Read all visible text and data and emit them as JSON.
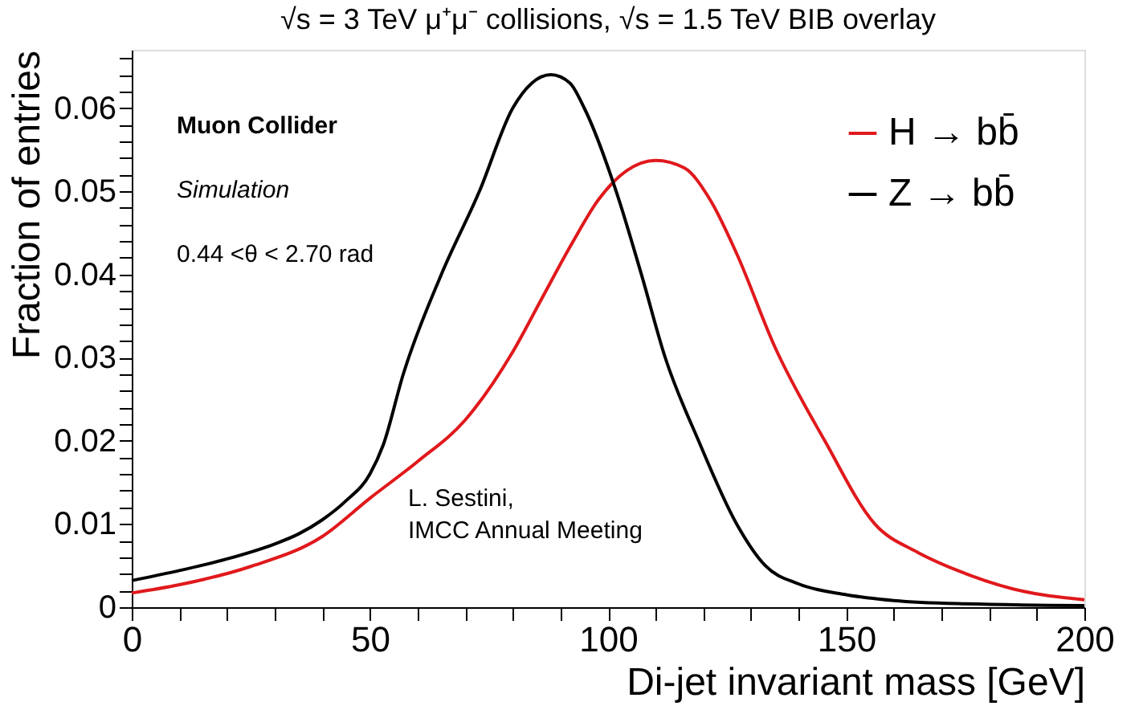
{
  "chart_data": {
    "type": "line",
    "title": "√s = 3 TeV μ⁺μ⁻ collisions, √s = 1.5 TeV BIB overlay",
    "xlabel": "Di-jet invariant mass [GeV]",
    "ylabel": "Fraction of entries",
    "xlim": [
      0,
      200
    ],
    "ylim": [
      0,
      0.067
    ],
    "xticks": [
      0,
      {
        "value": 10,
        "label": null
      },
      {
        "value": 20,
        "label": null
      },
      {
        "value": 30,
        "label": null
      },
      {
        "value": 40,
        "label": null
      },
      50,
      {
        "value": 60,
        "label": null
      },
      {
        "value": 70,
        "label": null
      },
      {
        "value": 80,
        "label": null
      },
      {
        "value": 90,
        "label": null
      },
      100,
      {
        "value": 110,
        "label": null
      },
      {
        "value": 120,
        "label": null
      },
      {
        "value": 130,
        "label": null
      },
      {
        "value": 140,
        "label": null
      },
      150,
      {
        "value": 160,
        "label": null
      },
      {
        "value": 170,
        "label": null
      },
      {
        "value": 180,
        "label": null
      },
      {
        "value": 190,
        "label": null
      },
      200
    ],
    "yticks": [
      0,
      {
        "value": 0.002,
        "label": null
      },
      {
        "value": 0.004,
        "label": null
      },
      {
        "value": 0.006,
        "label": null
      },
      {
        "value": 0.008,
        "label": null
      },
      0.01,
      {
        "value": 0.012,
        "label": null
      },
      {
        "value": 0.014,
        "label": null
      },
      {
        "value": 0.016,
        "label": null
      },
      {
        "value": 0.018,
        "label": null
      },
      0.02,
      {
        "value": 0.022,
        "label": null
      },
      {
        "value": 0.024,
        "label": null
      },
      {
        "value": 0.026,
        "label": null
      },
      {
        "value": 0.028,
        "label": null
      },
      0.03,
      {
        "value": 0.032,
        "label": null
      },
      {
        "value": 0.034,
        "label": null
      },
      {
        "value": 0.036,
        "label": null
      },
      {
        "value": 0.038,
        "label": null
      },
      0.04,
      {
        "value": 0.042,
        "label": null
      },
      {
        "value": 0.044,
        "label": null
      },
      {
        "value": 0.046,
        "label": null
      },
      {
        "value": 0.048,
        "label": null
      },
      0.05,
      {
        "value": 0.052,
        "label": null
      },
      {
        "value": 0.054,
        "label": null
      },
      {
        "value": 0.056,
        "label": null
      },
      {
        "value": 0.058,
        "label": null
      },
      0.06,
      {
        "value": 0.062,
        "label": null
      },
      {
        "value": 0.064,
        "label": null
      },
      {
        "value": 0.066,
        "label": null
      }
    ],
    "grid": false,
    "legend": "top right",
    "marker": "none",
    "line_style": "solid",
    "series": [
      {
        "name": "H → bb̄",
        "color": "#e0191c",
        "x": [
          0,
          10,
          25,
          40,
          50,
          60,
          70,
          80,
          86,
          92.4,
          98,
          104,
          110,
          116,
          121.4,
          127,
          135,
          145.5,
          156,
          165,
          173,
          185,
          200
        ],
        "values": [
          0.0017,
          0.0027,
          0.0049,
          0.0085,
          0.0131,
          0.0175,
          0.0225,
          0.0307,
          0.037,
          0.0437,
          0.049,
          0.0525,
          0.0537,
          0.0528,
          0.049,
          0.0425,
          0.0313,
          0.02,
          0.01,
          0.0066,
          0.0045,
          0.0022,
          0.0009
        ]
      },
      {
        "name": "Z → bb̄",
        "color": "#000000",
        "x": [
          0,
          10,
          20,
          30,
          35,
          40,
          45,
          50,
          52.8,
          57,
          65,
          73,
          80,
          84,
          88,
          92,
          95,
          101.7,
          107,
          112,
          119,
          127,
          133,
          140,
          150,
          160,
          175,
          200
        ],
        "values": [
          0.0032,
          0.0044,
          0.0058,
          0.0076,
          0.0088,
          0.0105,
          0.0128,
          0.016,
          0.0195,
          0.028,
          0.04,
          0.05,
          0.06,
          0.063,
          0.064,
          0.063,
          0.06,
          0.05,
          0.04,
          0.03,
          0.02,
          0.01,
          0.005,
          0.0028,
          0.0015,
          0.0008,
          0.0004,
          0.0002
        ]
      }
    ],
    "annotations": [
      "Muon Collider",
      "Simulation",
      "0.44 <θ < 2.70 rad",
      "L. Sestini,\nIMCC Annual Meeting"
    ]
  }
}
